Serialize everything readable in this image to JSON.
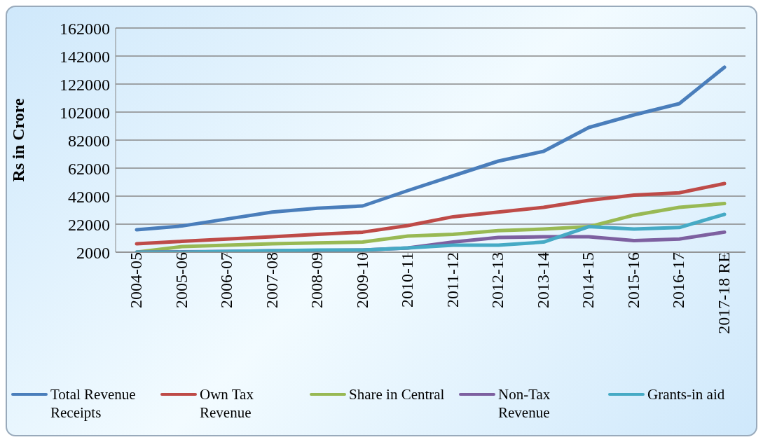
{
  "chart_data": {
    "type": "line",
    "ylabel": "Rs in Crore",
    "categories": [
      "2004-05",
      "2005-06",
      "2006-07",
      "2007-08",
      "2008-09",
      "2009-10",
      "2010-11",
      "2011-12",
      "2012-13",
      "2013-14",
      "2014-15",
      "2015-16",
      "2016-17",
      "2017-18 RE"
    ],
    "series": [
      {
        "name": "Total Revenue Receipts",
        "color": "#4a7ebb",
        "values": [
          18000,
          20700,
          25700,
          30600,
          33400,
          35000,
          46000,
          56500,
          67000,
          74000,
          91000,
          100000,
          108000,
          134000
        ]
      },
      {
        "name": "Own Tax Revenue",
        "color": "#be4b48",
        "values": [
          8000,
          9700,
          11400,
          13000,
          14700,
          16300,
          21000,
          27300,
          30600,
          34000,
          39000,
          42800,
          44400,
          51000
        ]
      },
      {
        "name": "Share in Central",
        "color": "#98b954",
        "values": [
          2000,
          6000,
          7000,
          8000,
          8600,
          9200,
          13500,
          14700,
          17400,
          18500,
          20200,
          28400,
          34000,
          36700
        ]
      },
      {
        "name": "Non-Tax Revenue",
        "color": "#7d60a0",
        "values": [
          2000,
          2200,
          2500,
          3000,
          3300,
          3500,
          5000,
          9200,
          12500,
          13000,
          13000,
          10300,
          11400,
          16300
        ]
      },
      {
        "name": "Grants-in aid",
        "color": "#46aac5",
        "values": [
          2000,
          2000,
          2500,
          3000,
          3500,
          3500,
          5000,
          7000,
          7000,
          9200,
          20200,
          18500,
          19600,
          29000
        ]
      }
    ],
    "ylim": [
      2000,
      162000
    ],
    "yticks": [
      2000,
      22000,
      42000,
      62000,
      82000,
      102000,
      122000,
      142000,
      162000
    ],
    "grid": "y",
    "legend": "bottom",
    "marker": "none",
    "line_style": "solid"
  }
}
